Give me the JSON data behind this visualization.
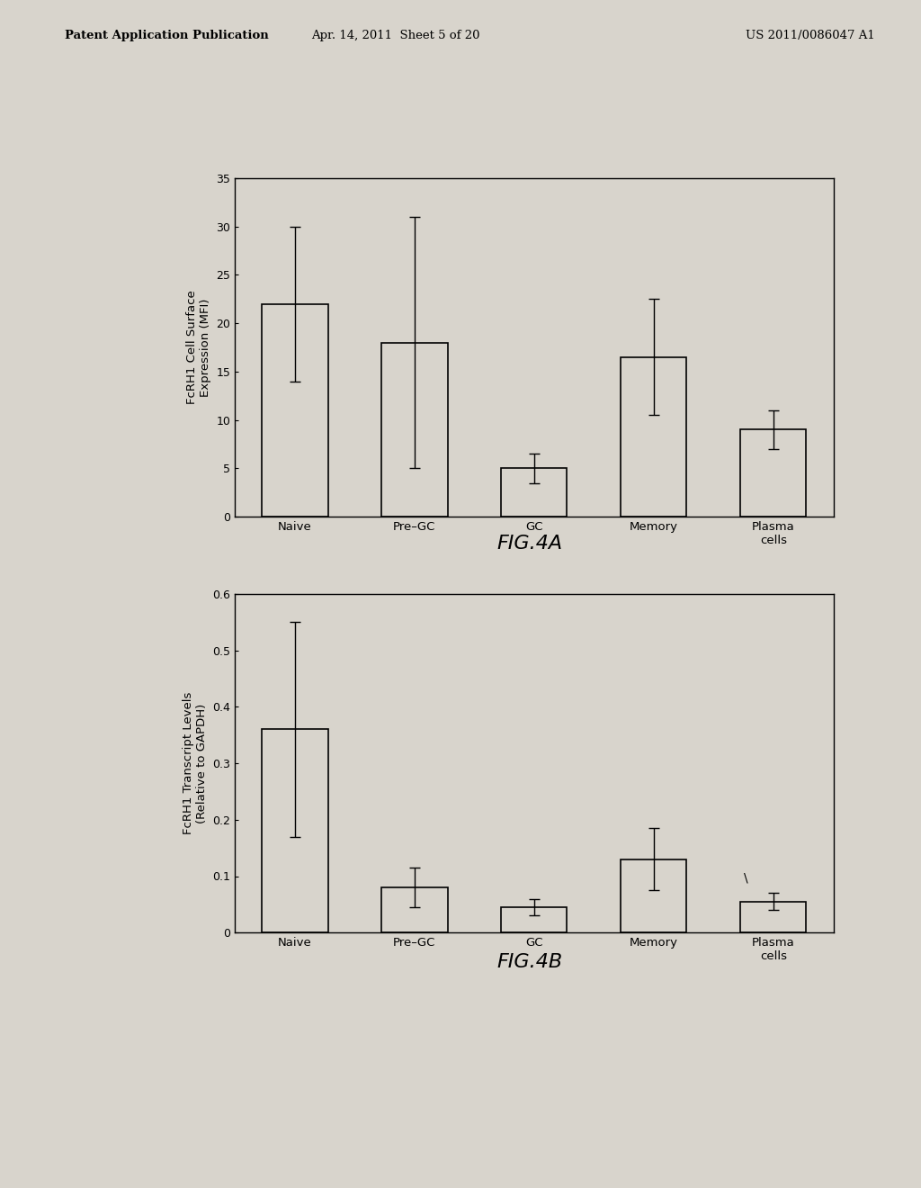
{
  "header_left": "Patent Application Publication",
  "header_mid": "Apr. 14, 2011  Sheet 5 of 20",
  "header_right": "US 2011/0086047 A1",
  "fig4a": {
    "categories": [
      "Naive",
      "Pre–GC",
      "GC",
      "Memory",
      "Plasma\ncells"
    ],
    "values": [
      22,
      18,
      5,
      16.5,
      9
    ],
    "errors": [
      8,
      13,
      1.5,
      6,
      2
    ],
    "ylabel": "FcRH1 Cell Surface\nExpression (MFI)",
    "ylim": [
      0,
      35
    ],
    "yticks": [
      0,
      5,
      10,
      15,
      20,
      25,
      30,
      35
    ],
    "caption": "FIG.4A"
  },
  "fig4b": {
    "categories": [
      "Naive",
      "Pre–GC",
      "GC",
      "Memory",
      "Plasma\ncells"
    ],
    "values": [
      0.36,
      0.08,
      0.045,
      0.13,
      0.055
    ],
    "errors": [
      0.19,
      0.035,
      0.015,
      0.055,
      0.015
    ],
    "ylabel": "FcRH1 Transcript Levels\n(Relative to GAPDH)",
    "ylim": [
      0,
      0.6
    ],
    "yticks": [
      0,
      0.1,
      0.2,
      0.3,
      0.4,
      0.5,
      0.6
    ],
    "ytick_labels": [
      "0",
      "0.1",
      "0.2",
      "0.3",
      "0.4",
      "0.5",
      "0.6"
    ],
    "caption": "FIG.4B"
  },
  "background_color": "#d8d4cc",
  "plot_bg_color": "#d8d4cc",
  "bar_color": "#d8d4cc",
  "bar_edge_color": "black",
  "bar_width": 0.55,
  "font_color": "black"
}
